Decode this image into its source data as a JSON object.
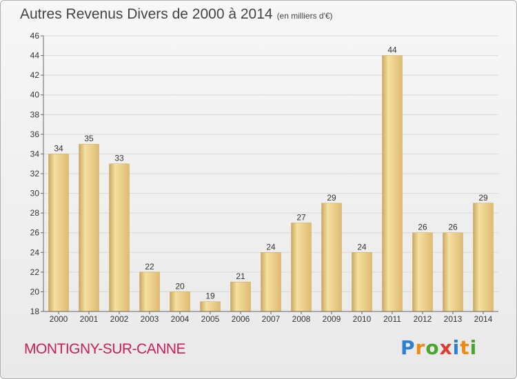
{
  "title": "Autres Revenus Divers de 2000 à 2014",
  "subtitle": "(en milliers d'€)",
  "location": "MONTIGNY-SUR-CANNE",
  "logo": {
    "letters": [
      "P",
      "r",
      "o",
      "x",
      "i",
      "t",
      "i"
    ],
    "colors": [
      "#2f7fd0",
      "#f08a12",
      "#4aa52e",
      "#e23b2b",
      "#2f7fd0",
      "#f08a12",
      "#4aa52e"
    ]
  },
  "chart_data": {
    "type": "bar",
    "categories": [
      "2000",
      "2001",
      "2002",
      "2003",
      "2004",
      "2005",
      "2006",
      "2007",
      "2008",
      "2009",
      "2010",
      "2011",
      "2012",
      "2013",
      "2014"
    ],
    "values": [
      34,
      35,
      33,
      22,
      20,
      19,
      21,
      24,
      27,
      29,
      24,
      44,
      26,
      26,
      29
    ],
    "title": "Autres Revenus Divers de 2000 à 2014",
    "xlabel": "",
    "ylabel": "",
    "ylim": [
      18,
      46
    ],
    "yticks": [
      18,
      20,
      22,
      24,
      26,
      28,
      30,
      32,
      34,
      36,
      38,
      40,
      42,
      44,
      46
    ],
    "grid": true,
    "bar_color": "#e8cc85"
  }
}
